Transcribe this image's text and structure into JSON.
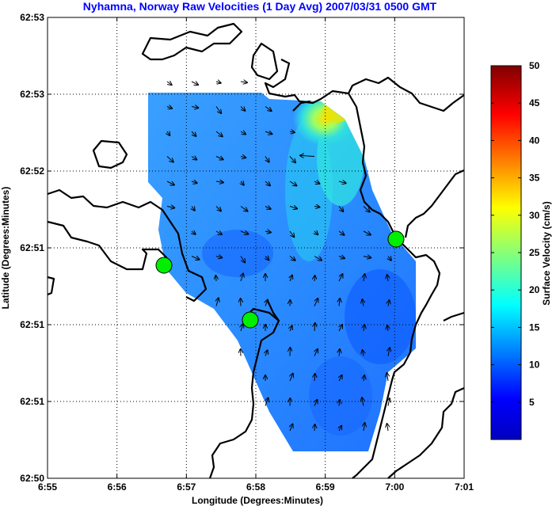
{
  "chart_data": {
    "type": "heatmap",
    "title": "Nyhamna, Norway Raw Velocities (1 Day Avg) 2007/03/31 0500 GMT",
    "xlabel": "Longitude (Degrees:Minutes)",
    "ylabel": "Latitude (Degrees:Minutes)",
    "x_ticks": [
      "6:55",
      "6:56",
      "6:57",
      "6:58",
      "6:59",
      "7:00",
      "7:01"
    ],
    "y_ticks": [
      "62:50",
      "62:51",
      "62:51",
      "62:51",
      "62:52",
      "62:53",
      "62:53"
    ],
    "colorbar": {
      "label": "Surface Velocity (cm/s)",
      "ticks": [
        "5",
        "10",
        "15",
        "20",
        "25",
        "30",
        "35",
        "40",
        "45",
        "50"
      ],
      "range": [
        0,
        50
      ]
    },
    "grid": true,
    "colors": {
      "title": "#0000ff",
      "coastline": "#000000",
      "site_marker": "#00ee00",
      "grid": "#000000"
    }
  }
}
